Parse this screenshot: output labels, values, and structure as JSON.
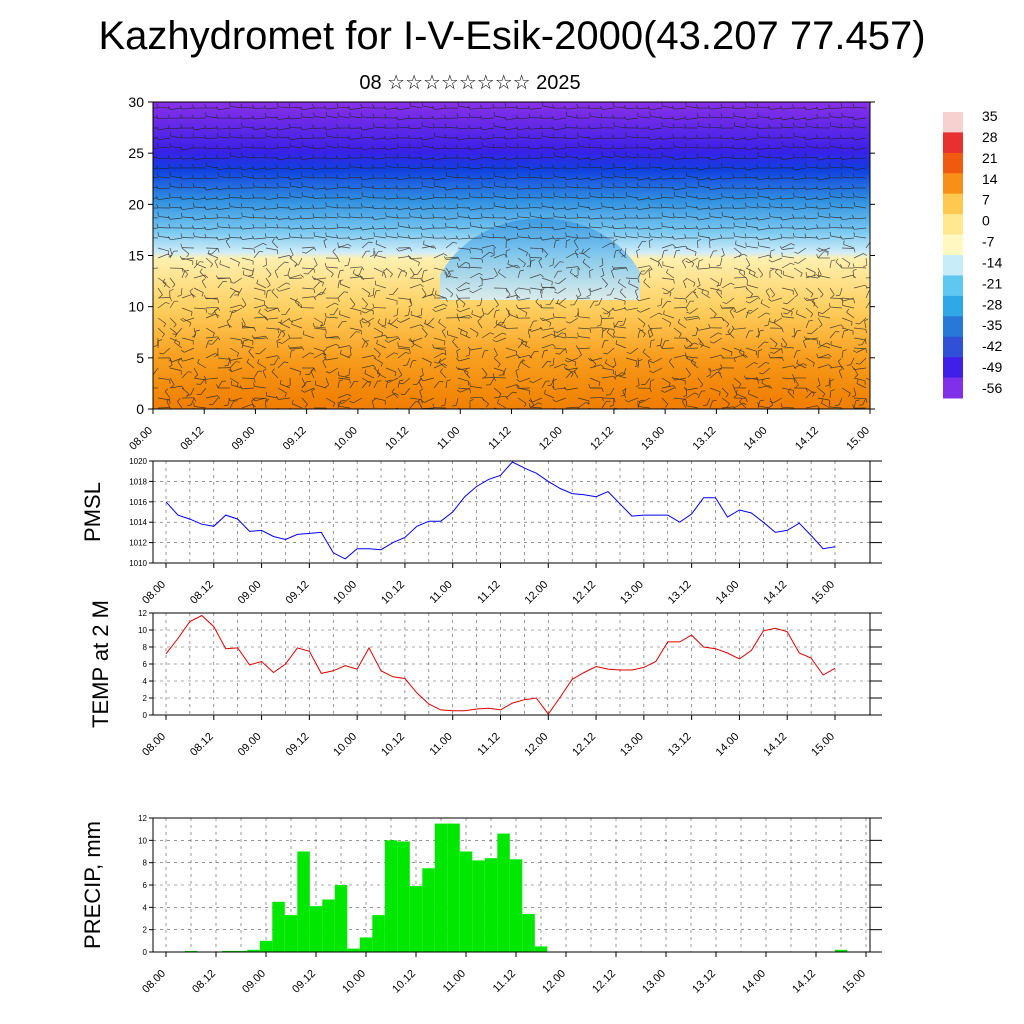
{
  "header": {
    "title": "Kazhydromet for I-V-Esik-2000(43.207 77.457)",
    "subtitle": "08 ☆☆☆☆☆☆☆☆ 2025"
  },
  "chart_data": [
    {
      "type": "heatmap",
      "ylim": [
        0,
        30
      ],
      "yticks": [
        0,
        5,
        10,
        15,
        20,
        25,
        30
      ],
      "xticks": [
        "08.00",
        "08.12",
        "09.00",
        "09.12",
        "10.00",
        "10.12",
        "11.00",
        "11.12",
        "12.00",
        "12.12",
        "13.00",
        "13.12",
        "14.00",
        "14.12",
        "15.00"
      ],
      "colorbar_labels": [
        "35",
        "28",
        "21",
        "14",
        "7",
        "0",
        "-7",
        "-14",
        "-21",
        "-28",
        "-35",
        "-42",
        "-49",
        "-56"
      ],
      "colorbar_values": [
        35,
        28,
        21,
        14,
        7,
        0,
        -7,
        -14,
        -21,
        -28,
        -35,
        -42,
        -49,
        -56
      ],
      "colors": [
        "#f7d0d0",
        "#e83030",
        "#f05a10",
        "#f89018",
        "#ffc850",
        "#ffe890",
        "#fff8c0",
        "#c8ecf8",
        "#60c8f0",
        "#30a8e8",
        "#2878d8",
        "#3050d8",
        "#4020e8",
        "#8030e8"
      ]
    },
    {
      "type": "line",
      "ylabel": "PMSL",
      "ylim": [
        1010,
        1020
      ],
      "yticks": [
        1010,
        1012,
        1014,
        1016,
        1018,
        1020
      ],
      "xticks": [
        "08.00",
        "08.12",
        "09.00",
        "09.12",
        "10.00",
        "10.12",
        "11.00",
        "11.12",
        "12.00",
        "12.12",
        "13.00",
        "13.12",
        "14.00",
        "14.12",
        "15.00"
      ],
      "color": "#0000ff",
      "values": [
        1016.0,
        1014.7,
        1014.3,
        1013.8,
        1013.6,
        1014.7,
        1014.3,
        1013.1,
        1013.2,
        1012.6,
        1012.3,
        1012.8,
        1012.9,
        1013.0,
        1011.0,
        1010.4,
        1011.4,
        1011.4,
        1011.3,
        1012.0,
        1012.5,
        1013.6,
        1014.1,
        1014.1,
        1015.0,
        1016.5,
        1017.5,
        1018.2,
        1018.6,
        1019.9,
        1019.3,
        1018.8,
        1018.0,
        1017.3,
        1016.8,
        1016.7,
        1016.5,
        1017.0,
        1015.8,
        1014.6,
        1014.7,
        1014.7,
        1014.7,
        1014.0,
        1014.8,
        1016.4,
        1016.4,
        1014.5,
        1015.2,
        1014.9,
        1014.0,
        1013.0,
        1013.2,
        1013.9,
        1012.7,
        1011.4,
        1011.6
      ]
    },
    {
      "type": "line",
      "ylabel": "TEMP at 2 M",
      "ylim": [
        0,
        12
      ],
      "yticks": [
        0,
        2,
        4,
        6,
        8,
        10,
        12
      ],
      "xticks": [
        "08.00",
        "08.12",
        "09.00",
        "09.12",
        "10.00",
        "10.12",
        "11.00",
        "11.12",
        "12.00",
        "12.12",
        "13.00",
        "13.12",
        "14.00",
        "14.12",
        "15.00"
      ],
      "color": "#e00000",
      "values": [
        7.2,
        9.0,
        11.0,
        11.7,
        10.4,
        7.8,
        7.9,
        5.9,
        6.3,
        5.0,
        6.0,
        7.9,
        7.5,
        4.9,
        5.2,
        5.8,
        5.4,
        7.9,
        5.2,
        4.5,
        4.3,
        2.6,
        1.3,
        0.6,
        0.5,
        0.5,
        0.7,
        0.8,
        0.6,
        1.4,
        1.8,
        2.0,
        0.1,
        2.1,
        4.2,
        5.0,
        5.7,
        5.4,
        5.3,
        5.3,
        5.6,
        6.3,
        8.6,
        8.6,
        9.4,
        8.0,
        7.8,
        7.3,
        6.6,
        7.6,
        9.9,
        10.2,
        9.8,
        7.3,
        6.7,
        4.7,
        5.5
      ]
    },
    {
      "type": "bar",
      "ylabel": "PRECIP, mm",
      "ylim": [
        0,
        12
      ],
      "yticks": [
        0,
        2,
        4,
        6,
        8,
        10,
        12
      ],
      "xticks": [
        "08.00",
        "08.12",
        "09.00",
        "09.12",
        "10.00",
        "10.12",
        "11.00",
        "11.12",
        "12.00",
        "12.12",
        "13.00",
        "13.12",
        "14.00",
        "14.12",
        "15.00"
      ],
      "color": "#00e800",
      "values": [
        0,
        0,
        0.1,
        0,
        0,
        0.1,
        0.1,
        0.2,
        1.0,
        4.5,
        3.3,
        9.0,
        4.1,
        4.7,
        6.0,
        0.3,
        1.3,
        3.3,
        10.0,
        9.9,
        5.9,
        7.5,
        11.5,
        11.5,
        9.0,
        8.2,
        8.4,
        10.6,
        8.3,
        3.4,
        0.5,
        0,
        0,
        0,
        0,
        0,
        0,
        0,
        0,
        0,
        0,
        0,
        0,
        0,
        0,
        0,
        0,
        0,
        0,
        0,
        0,
        0,
        0,
        0,
        0.2,
        0,
        0
      ]
    }
  ]
}
